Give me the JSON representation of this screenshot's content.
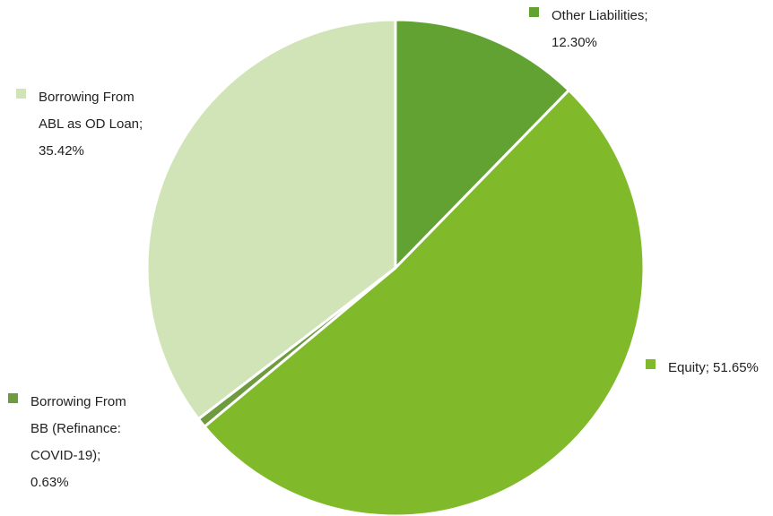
{
  "chart_data": {
    "type": "pie",
    "title": "",
    "slices": [
      {
        "label": "Other Liabilities",
        "value": 12.3,
        "value_text": "12.30%",
        "color": "#62a232",
        "label_lines": [
          "Other Liabilities;",
          "12.30%"
        ]
      },
      {
        "label": "Equity",
        "value": 51.65,
        "value_text": "51.65%",
        "color": "#80b929",
        "label_lines": [
          "Equity; 51.65%"
        ]
      },
      {
        "label": "Borrowing From BB (Refinance: COVID-19)",
        "value": 0.63,
        "value_text": "0.63%",
        "color": "#6e9b3d",
        "label_lines": [
          "Borrowing From",
          "BB (Refinance:",
          "COVID-19);",
          "0.63%"
        ]
      },
      {
        "label": "Borrowing From ABL as OD Loan",
        "value": 35.42,
        "value_text": "35.42%",
        "color": "#d1e4b8",
        "label_lines": [
          "Borrowing From",
          "ABL as OD Loan;",
          "35.42%"
        ]
      }
    ],
    "start_angle_deg": 0,
    "direction": "clockwise",
    "legend": "none",
    "data_labels": "category name and percentage, outside slices"
  }
}
